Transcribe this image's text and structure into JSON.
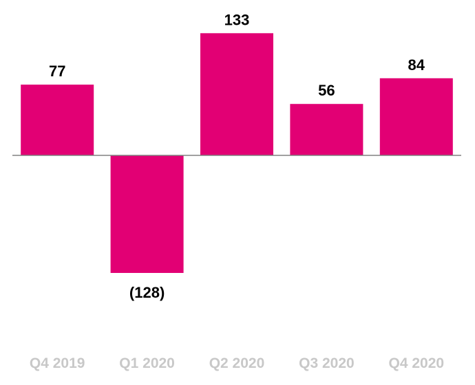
{
  "chart_data": {
    "type": "bar",
    "title": "",
    "xlabel": "",
    "ylabel": "",
    "categories": [
      "Q4 2019",
      "Q1 2020",
      "Q2 2020",
      "Q3 2020",
      "Q4 2020"
    ],
    "values": [
      77,
      -128,
      133,
      56,
      84
    ],
    "value_labels": [
      "77",
      "(128)",
      "133",
      "56",
      "84"
    ],
    "ylim": [
      -150,
      135
    ],
    "grid": false,
    "legend": "none",
    "colors": {
      "bar": "#E20074",
      "baseline": "#808080",
      "tick_label": "#C8C8C8",
      "value_label": "#000000"
    }
  }
}
